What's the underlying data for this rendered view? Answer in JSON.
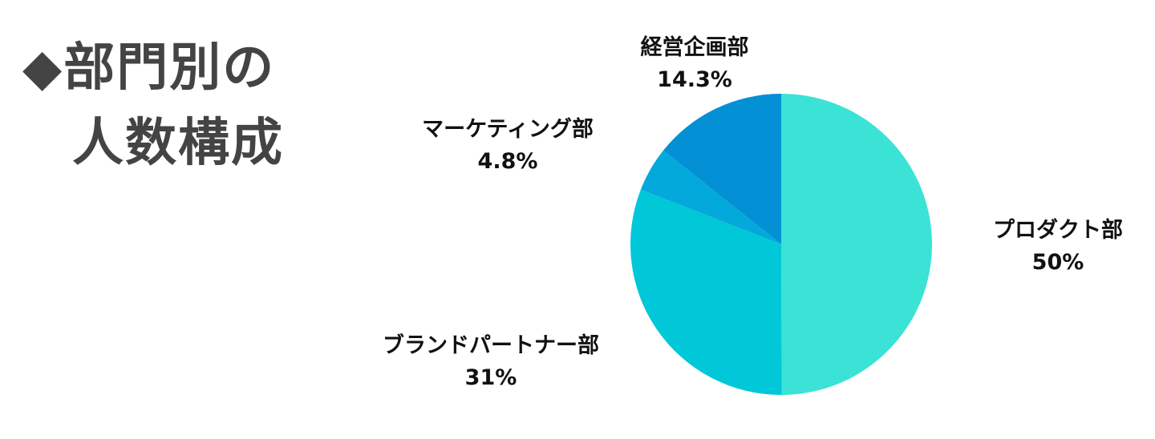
{
  "chart_data": {
    "type": "pie",
    "title_lines": [
      "◆部門別の",
      "人数構成"
    ],
    "slices": [
      {
        "label": "プロダクト部",
        "value": 50,
        "display": "50%",
        "color": "#3ae3d5"
      },
      {
        "label": "ブランドパートナー部",
        "value": 31,
        "display": "31%",
        "color": "#00c8d9"
      },
      {
        "label": "マーケティング部",
        "value": 4.8,
        "display": "4.8%",
        "color": "#03a9da"
      },
      {
        "label": "経営企画部",
        "value": 14.3,
        "display": "14.3%",
        "color": "#0390d4"
      }
    ],
    "start": "top",
    "direction": "clockwise",
    "legend": "none",
    "labels": "outside"
  }
}
